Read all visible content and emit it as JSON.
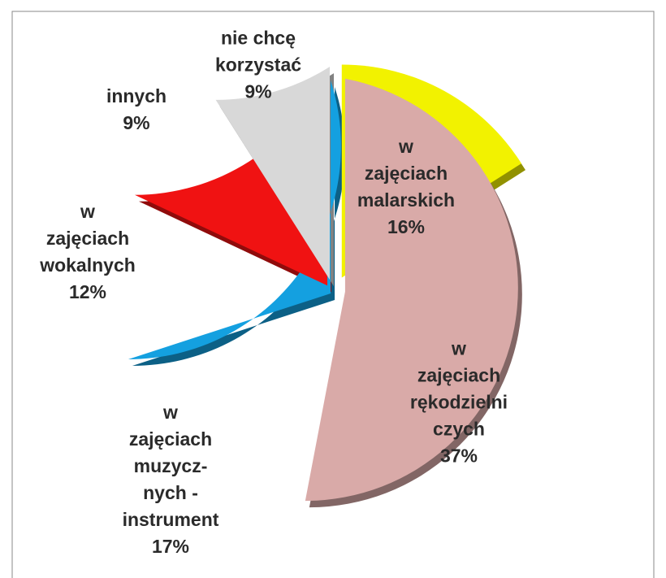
{
  "chart_data": {
    "type": "pie",
    "categories": [
      "w\nzajęciach\nmalarskich",
      "w\nzajęciach\nrękodzielni\nczych",
      "w\nzajęciach\nmuzycz-\nnych -\ninstrument",
      "w\nzajęciach\nwokalnych",
      "innych",
      "nie chcę\nkorzystać"
    ],
    "values": [
      16,
      37,
      17,
      12,
      9,
      9
    ],
    "value_labels": [
      "16%",
      "37%",
      "17%",
      "12%",
      "9%",
      "9%"
    ],
    "colors": [
      "#f2f200",
      "#d9aaa8",
      "#14a0e0",
      "#f01212",
      "#d8d8d8",
      "#d4884a"
    ]
  }
}
